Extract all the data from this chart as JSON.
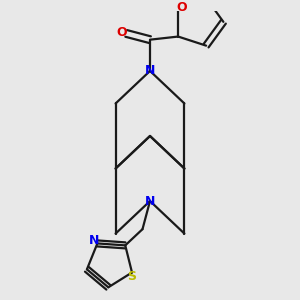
{
  "bg_color": "#e8e8e8",
  "bond_color": "#1a1a1a",
  "n_color": "#0000ee",
  "o_color": "#dd0000",
  "s_color": "#bbbb00",
  "lw": 1.6,
  "figsize": [
    3.0,
    3.0
  ],
  "dpi": 100,
  "xlim": [
    -1.5,
    1.5
  ],
  "ylim": [
    -2.6,
    2.0
  ]
}
